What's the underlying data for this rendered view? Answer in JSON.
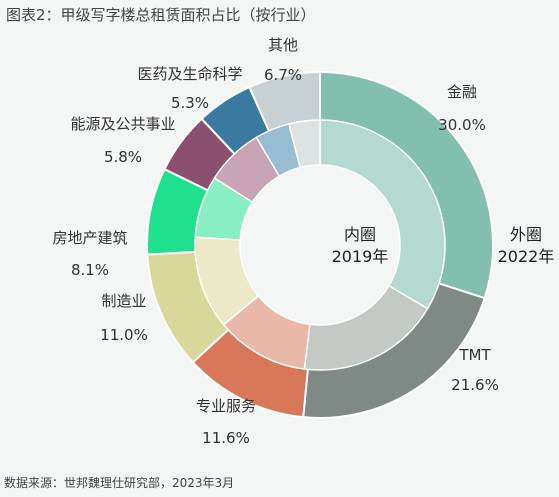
{
  "chart_data": {
    "type": "donut",
    "title": "图表2：甲级写字楼总租赁面积占比（按行业）",
    "source": "数据来源：世邦魏理仕研究部，2023年3月",
    "rings": [
      {
        "name": "外圈",
        "year": "2022年",
        "segments": [
          {
            "label": "金融",
            "value": 30.0,
            "value_text": "30.0%",
            "color": "#82bfaf"
          },
          {
            "label": "TMT",
            "value": 21.6,
            "value_text": "21.6%",
            "color": "#7f8985"
          },
          {
            "label": "专业服务",
            "value": 11.6,
            "value_text": "11.6%",
            "color": "#d9775a"
          },
          {
            "label": "制造业",
            "value": 11.0,
            "value_text": "11.0%",
            "color": "#d8d89a"
          },
          {
            "label": "房地产建筑",
            "value": 8.1,
            "value_text": "8.1%",
            "color": "#1ee08e"
          },
          {
            "label": "能源及公共事业",
            "value": 5.8,
            "value_text": "5.8%",
            "color": "#8b4f70"
          },
          {
            "label": "医药及生命科学",
            "value": 5.3,
            "value_text": "5.3%",
            "color": "#3a7aa0"
          },
          {
            "label": "其他",
            "value": 6.7,
            "value_text": "6.7%",
            "color": "#c7d0d2"
          }
        ]
      },
      {
        "name": "内圈",
        "year": "2019年",
        "segments": [
          {
            "label": "金融",
            "value": 33.5,
            "color": "#b4d9d0"
          },
          {
            "label": "TMT",
            "value": 18.5,
            "color": "#c4c9c6"
          },
          {
            "label": "专业服务",
            "value": 12.0,
            "color": "#eab8a8"
          },
          {
            "label": "制造业",
            "value": 12.0,
            "color": "#ece9c6"
          },
          {
            "label": "房地产建筑",
            "value": 8.0,
            "color": "#88eec4"
          },
          {
            "label": "能源及公共事业",
            "value": 7.5,
            "color": "#c7a4b6"
          },
          {
            "label": "医药及生命科学",
            "value": 4.5,
            "color": "#98bcd2"
          },
          {
            "label": "其他",
            "value": 4.0,
            "color": "#dde2e3"
          }
        ]
      }
    ]
  }
}
